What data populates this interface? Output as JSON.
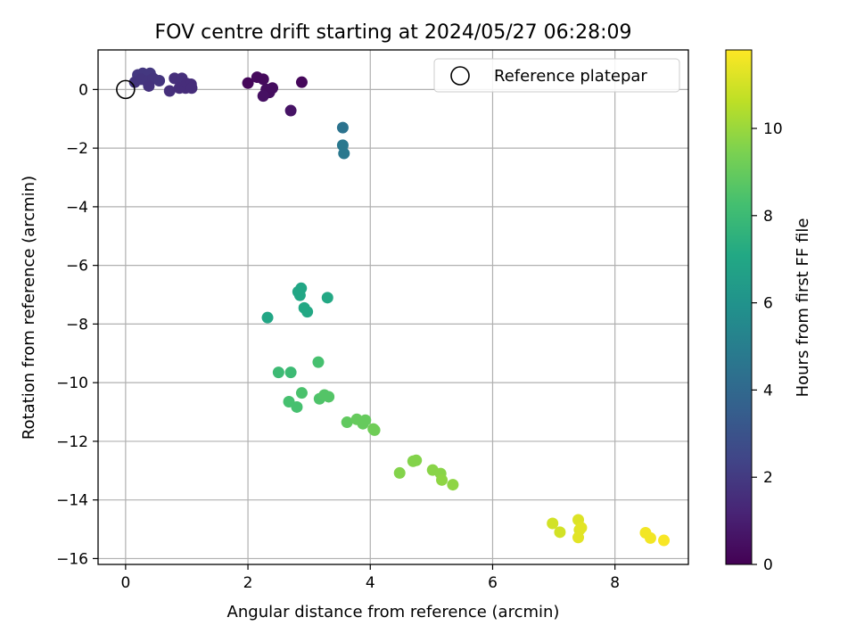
{
  "chart_data": {
    "type": "scatter",
    "title": "FOV centre drift starting at 2024/05/27 06:28:09",
    "xlabel": "Angular distance from reference (arcmin)",
    "ylabel": "Rotation from reference (arcmin)",
    "xlim": [
      -0.45,
      9.2
    ],
    "ylim": [
      -16.2,
      1.35
    ],
    "xticks": [
      0,
      2,
      4,
      6,
      8
    ],
    "yticks": [
      -16,
      -14,
      -12,
      -10,
      -8,
      -6,
      -4,
      -2,
      0
    ],
    "grid": true,
    "legend": {
      "placement": "top-right",
      "entries": [
        "Reference platepar"
      ]
    },
    "reference_point": {
      "x": 0,
      "y": 0
    },
    "colorbar": {
      "label": "Hours from first FF file",
      "min": 0,
      "max": 11.8,
      "ticks": [
        0,
        2,
        4,
        6,
        8,
        10
      ],
      "colormap": "viridis"
    },
    "points": [
      {
        "x": 0.2,
        "y": 0.5,
        "h": 1.9
      },
      {
        "x": 0.28,
        "y": 0.55,
        "h": 1.9
      },
      {
        "x": 0.4,
        "y": 0.55,
        "h": 1.9
      },
      {
        "x": 0.15,
        "y": 0.25,
        "h": 1.8
      },
      {
        "x": 0.25,
        "y": 0.35,
        "h": 1.8
      },
      {
        "x": 0.35,
        "y": 0.28,
        "h": 1.8
      },
      {
        "x": 0.45,
        "y": 0.38,
        "h": 1.8
      },
      {
        "x": 0.55,
        "y": 0.3,
        "h": 1.8
      },
      {
        "x": 0.38,
        "y": 0.12,
        "h": 1.7
      },
      {
        "x": 0.72,
        "y": -0.05,
        "h": 1.6
      },
      {
        "x": 0.8,
        "y": 0.38,
        "h": 1.6
      },
      {
        "x": 0.92,
        "y": 0.38,
        "h": 1.6
      },
      {
        "x": 0.88,
        "y": 0.05,
        "h": 1.5
      },
      {
        "x": 0.98,
        "y": 0.05,
        "h": 1.5
      },
      {
        "x": 1.0,
        "y": 0.2,
        "h": 1.5
      },
      {
        "x": 1.07,
        "y": 0.18,
        "h": 1.5
      },
      {
        "x": 1.08,
        "y": 0.05,
        "h": 1.5
      },
      {
        "x": 2.0,
        "y": 0.22,
        "h": 0.2
      },
      {
        "x": 2.15,
        "y": 0.42,
        "h": 0.3
      },
      {
        "x": 2.25,
        "y": 0.35,
        "h": 0.3
      },
      {
        "x": 2.3,
        "y": 0.0,
        "h": 0.4
      },
      {
        "x": 2.35,
        "y": -0.1,
        "h": 0.4
      },
      {
        "x": 2.4,
        "y": 0.05,
        "h": 0.4
      },
      {
        "x": 2.25,
        "y": -0.22,
        "h": 0.5
      },
      {
        "x": 2.88,
        "y": 0.25,
        "h": 0.2
      },
      {
        "x": 2.7,
        "y": -0.72,
        "h": 0.6
      },
      {
        "x": 3.55,
        "y": -1.3,
        "h": 4.5
      },
      {
        "x": 3.55,
        "y": -1.9,
        "h": 4.7
      },
      {
        "x": 3.57,
        "y": -2.18,
        "h": 4.7
      },
      {
        "x": 2.32,
        "y": -7.78,
        "h": 7.0
      },
      {
        "x": 2.82,
        "y": -6.9,
        "h": 7.0
      },
      {
        "x": 2.87,
        "y": -6.78,
        "h": 7.0
      },
      {
        "x": 2.85,
        "y": -7.02,
        "h": 7.0
      },
      {
        "x": 2.92,
        "y": -7.45,
        "h": 7.1
      },
      {
        "x": 2.97,
        "y": -7.58,
        "h": 7.1
      },
      {
        "x": 3.3,
        "y": -7.1,
        "h": 7.1
      },
      {
        "x": 2.5,
        "y": -9.65,
        "h": 8.0
      },
      {
        "x": 2.7,
        "y": -9.65,
        "h": 8.0
      },
      {
        "x": 3.15,
        "y": -9.3,
        "h": 8.3
      },
      {
        "x": 2.67,
        "y": -10.65,
        "h": 8.3
      },
      {
        "x": 2.8,
        "y": -10.83,
        "h": 8.3
      },
      {
        "x": 2.88,
        "y": -10.35,
        "h": 8.4
      },
      {
        "x": 3.17,
        "y": -10.55,
        "h": 8.5
      },
      {
        "x": 3.25,
        "y": -10.42,
        "h": 8.6
      },
      {
        "x": 3.32,
        "y": -10.48,
        "h": 8.6
      },
      {
        "x": 3.62,
        "y": -11.35,
        "h": 8.9
      },
      {
        "x": 3.78,
        "y": -11.25,
        "h": 9.0
      },
      {
        "x": 3.88,
        "y": -11.4,
        "h": 9.0
      },
      {
        "x": 3.92,
        "y": -11.28,
        "h": 9.0
      },
      {
        "x": 4.05,
        "y": -11.58,
        "h": 9.2
      },
      {
        "x": 4.07,
        "y": -11.62,
        "h": 9.2
      },
      {
        "x": 4.48,
        "y": -13.08,
        "h": 9.6
      },
      {
        "x": 4.7,
        "y": -12.68,
        "h": 9.6
      },
      {
        "x": 4.75,
        "y": -12.65,
        "h": 9.6
      },
      {
        "x": 5.02,
        "y": -12.98,
        "h": 9.7
      },
      {
        "x": 5.15,
        "y": -13.1,
        "h": 9.7
      },
      {
        "x": 5.17,
        "y": -13.32,
        "h": 9.8
      },
      {
        "x": 5.35,
        "y": -13.48,
        "h": 9.8
      },
      {
        "x": 6.98,
        "y": -14.8,
        "h": 11.0
      },
      {
        "x": 7.1,
        "y": -15.1,
        "h": 11.0
      },
      {
        "x": 7.4,
        "y": -14.68,
        "h": 11.2
      },
      {
        "x": 7.42,
        "y": -15.02,
        "h": 11.2
      },
      {
        "x": 7.45,
        "y": -14.95,
        "h": 11.3
      },
      {
        "x": 7.4,
        "y": -15.28,
        "h": 11.3
      },
      {
        "x": 8.5,
        "y": -15.12,
        "h": 11.6
      },
      {
        "x": 8.58,
        "y": -15.3,
        "h": 11.6
      },
      {
        "x": 8.8,
        "y": -15.38,
        "h": 11.7
      }
    ]
  }
}
